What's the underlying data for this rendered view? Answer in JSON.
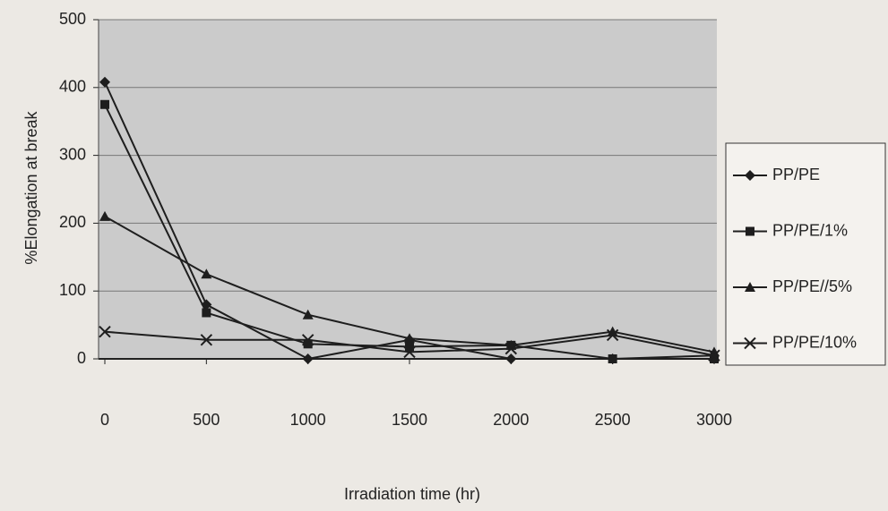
{
  "chart_data": {
    "type": "line",
    "x_label": "Irradiation time (hr)",
    "y_label": "%Elongation at break",
    "x": [
      0,
      500,
      1000,
      1500,
      2000,
      2500,
      3000
    ],
    "xlim": [
      0,
      3000
    ],
    "xticks": [
      0,
      500,
      1000,
      1500,
      2000,
      2500,
      3000
    ],
    "ylim": [
      0,
      500
    ],
    "yticks": [
      0,
      100,
      200,
      300,
      400,
      500
    ],
    "grid": true,
    "legend": "right",
    "series": [
      {
        "name": "PP/PE",
        "color": "#1e1e1e",
        "marker": "diamond",
        "values": [
          408,
          80,
          0,
          28,
          0,
          0,
          5
        ]
      },
      {
        "name": "PP/PE/1%",
        "color": "#1e1e1e",
        "marker": "square",
        "values": [
          375,
          68,
          22,
          18,
          20,
          0,
          0
        ]
      },
      {
        "name": "PP/PE//5%",
        "color": "#1e1e1e",
        "marker": "triangle",
        "values": [
          210,
          125,
          65,
          30,
          20,
          40,
          10
        ]
      },
      {
        "name": "PP/PE/10%",
        "color": "#1e1e1e",
        "marker": "x",
        "values": [
          40,
          28,
          28,
          10,
          15,
          35,
          5
        ]
      }
    ]
  }
}
